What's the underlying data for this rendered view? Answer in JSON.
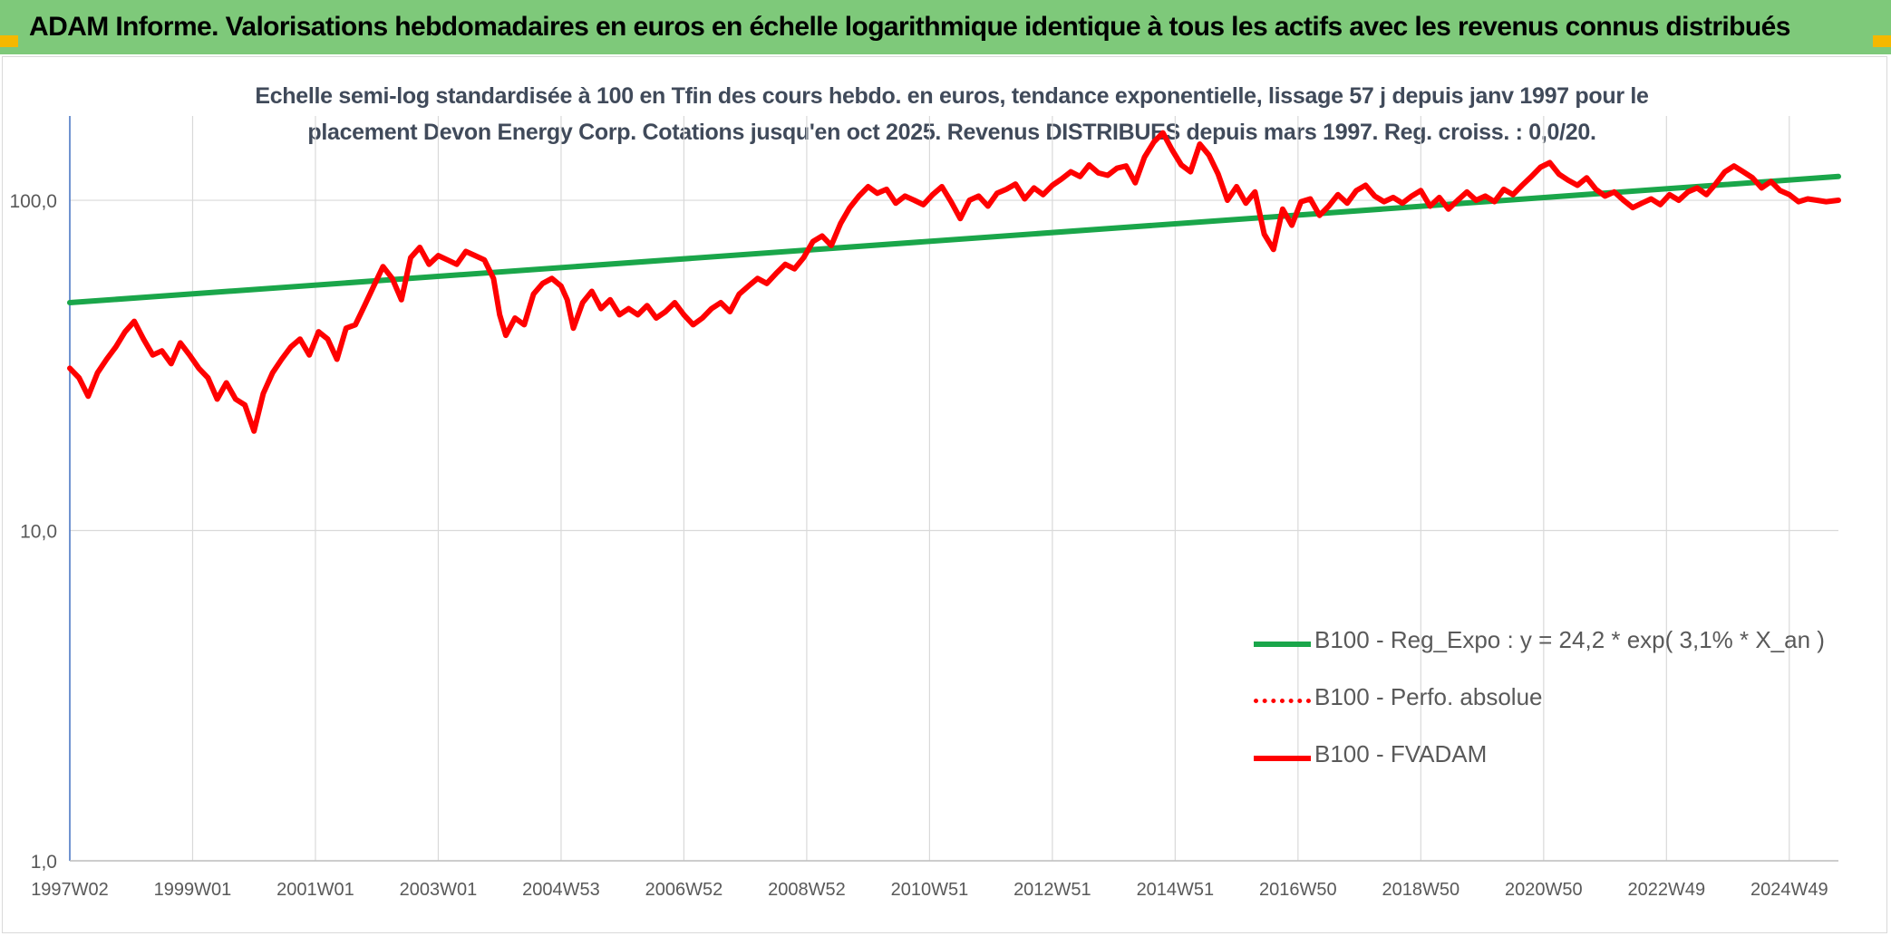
{
  "banner": {
    "title": "ADAM Informe. Valorisations hebdomadaires en euros en échelle logarithmique identique à tous les actifs avec les revenus connus distribués"
  },
  "colors": {
    "banner_bg": "#7ec97a",
    "corner_accent": "#f5b800",
    "trend_line": "#1aa64a",
    "fvadam_line": "#ff0000",
    "perfo_line": "#ff0000",
    "grid": "#d9d9d9",
    "axis": "#4472c4"
  },
  "chart_data": {
    "type": "line",
    "subtitle": "Echelle semi-log standardisée à 100 en Tfin des cours hebdo. en euros, tendance exponentielle, lissage 57 j depuis janv 1997 pour le placement Devon Energy Corp. Cotations jusqu'en oct 2025. Revenus DISTRIBUES depuis mars 1997. Reg. croiss. : 0,0/20.",
    "y_scale": "log",
    "ylim": [
      1,
      180
    ],
    "y_ticks": [
      {
        "value": 1,
        "label": "1,0"
      },
      {
        "value": 10,
        "label": "10,0"
      },
      {
        "value": 100,
        "label": "100,0"
      }
    ],
    "xlim": [
      1997.0,
      2025.8
    ],
    "x_ticks": [
      {
        "x": 1997.0,
        "label": "1997W02"
      },
      {
        "x": 1999.0,
        "label": "1999W01"
      },
      {
        "x": 2001.0,
        "label": "2001W01"
      },
      {
        "x": 2003.0,
        "label": "2003W01"
      },
      {
        "x": 2005.0,
        "label": "2004W53"
      },
      {
        "x": 2007.0,
        "label": "2006W52"
      },
      {
        "x": 2009.0,
        "label": "2008W52"
      },
      {
        "x": 2011.0,
        "label": "2010W51"
      },
      {
        "x": 2013.0,
        "label": "2012W51"
      },
      {
        "x": 2015.0,
        "label": "2014W51"
      },
      {
        "x": 2017.0,
        "label": "2016W50"
      },
      {
        "x": 2019.0,
        "label": "2018W50"
      },
      {
        "x": 2021.0,
        "label": "2020W50"
      },
      {
        "x": 2023.0,
        "label": "2022W49"
      },
      {
        "x": 2025.0,
        "label": "2024W49"
      }
    ],
    "legend": {
      "position": "bottom-right"
    },
    "series": [
      {
        "name": "B100 - Reg_Expo : y = 24,2 * exp( 3,1% *  X_an )",
        "color": "#1aa64a",
        "style": "solid",
        "points": [
          [
            1997.0,
            49
          ],
          [
            2025.8,
            118
          ]
        ]
      },
      {
        "name": "B100 - Perfo. absolue",
        "color": "#ff0000",
        "style": "dotted",
        "points": []
      },
      {
        "name": "B100 - FVADAM",
        "color": "#ff0000",
        "style": "solid",
        "points": [
          [
            1997.0,
            31
          ],
          [
            1997.15,
            29
          ],
          [
            1997.3,
            25.5
          ],
          [
            1997.45,
            30
          ],
          [
            1997.6,
            33
          ],
          [
            1997.75,
            36
          ],
          [
            1997.9,
            40
          ],
          [
            1998.05,
            43
          ],
          [
            1998.2,
            38
          ],
          [
            1998.35,
            34
          ],
          [
            1998.5,
            35
          ],
          [
            1998.65,
            32
          ],
          [
            1998.8,
            37
          ],
          [
            1998.95,
            34
          ],
          [
            1999.1,
            31
          ],
          [
            1999.25,
            29
          ],
          [
            1999.4,
            25
          ],
          [
            1999.55,
            28
          ],
          [
            1999.7,
            25
          ],
          [
            1999.85,
            24
          ],
          [
            2000.0,
            20
          ],
          [
            2000.15,
            26
          ],
          [
            2000.3,
            30
          ],
          [
            2000.45,
            33
          ],
          [
            2000.6,
            36
          ],
          [
            2000.75,
            38
          ],
          [
            2000.9,
            34
          ],
          [
            2001.05,
            40
          ],
          [
            2001.2,
            38
          ],
          [
            2001.35,
            33
          ],
          [
            2001.5,
            41
          ],
          [
            2001.65,
            42
          ],
          [
            2001.8,
            48
          ],
          [
            2001.95,
            55
          ],
          [
            2002.1,
            63
          ],
          [
            2002.25,
            58
          ],
          [
            2002.4,
            50
          ],
          [
            2002.55,
            67
          ],
          [
            2002.7,
            72
          ],
          [
            2002.85,
            64
          ],
          [
            2003.0,
            68
          ],
          [
            2003.15,
            66
          ],
          [
            2003.3,
            64
          ],
          [
            2003.45,
            70
          ],
          [
            2003.6,
            68
          ],
          [
            2003.75,
            66
          ],
          [
            2003.9,
            58
          ],
          [
            2004.0,
            45
          ],
          [
            2004.1,
            39
          ],
          [
            2004.25,
            44
          ],
          [
            2004.4,
            42
          ],
          [
            2004.55,
            52
          ],
          [
            2004.7,
            56
          ],
          [
            2004.85,
            58
          ],
          [
            2005.0,
            55
          ],
          [
            2005.1,
            50
          ],
          [
            2005.2,
            41
          ],
          [
            2005.35,
            49
          ],
          [
            2005.5,
            53
          ],
          [
            2005.65,
            47
          ],
          [
            2005.8,
            50
          ],
          [
            2005.95,
            45
          ],
          [
            2006.1,
            47
          ],
          [
            2006.25,
            45
          ],
          [
            2006.4,
            48
          ],
          [
            2006.55,
            44
          ],
          [
            2006.7,
            46
          ],
          [
            2006.85,
            49
          ],
          [
            2007.0,
            45
          ],
          [
            2007.15,
            42
          ],
          [
            2007.3,
            44
          ],
          [
            2007.45,
            47
          ],
          [
            2007.6,
            49
          ],
          [
            2007.75,
            46
          ],
          [
            2007.9,
            52
          ],
          [
            2008.05,
            55
          ],
          [
            2008.2,
            58
          ],
          [
            2008.35,
            56
          ],
          [
            2008.5,
            60
          ],
          [
            2008.65,
            64
          ],
          [
            2008.8,
            62
          ],
          [
            2008.95,
            67
          ],
          [
            2009.1,
            75
          ],
          [
            2009.25,
            78
          ],
          [
            2009.4,
            73
          ],
          [
            2009.55,
            85
          ],
          [
            2009.7,
            95
          ],
          [
            2009.85,
            103
          ],
          [
            2010.0,
            110
          ],
          [
            2010.15,
            105
          ],
          [
            2010.3,
            108
          ],
          [
            2010.45,
            98
          ],
          [
            2010.6,
            103
          ],
          [
            2010.75,
            100
          ],
          [
            2010.9,
            97
          ],
          [
            2011.05,
            104
          ],
          [
            2011.2,
            110
          ],
          [
            2011.35,
            99
          ],
          [
            2011.5,
            88
          ],
          [
            2011.65,
            100
          ],
          [
            2011.8,
            103
          ],
          [
            2011.95,
            96
          ],
          [
            2012.1,
            105
          ],
          [
            2012.25,
            108
          ],
          [
            2012.4,
            112
          ],
          [
            2012.55,
            101
          ],
          [
            2012.7,
            109
          ],
          [
            2012.85,
            104
          ],
          [
            2013.0,
            111
          ],
          [
            2013.15,
            116
          ],
          [
            2013.3,
            122
          ],
          [
            2013.45,
            118
          ],
          [
            2013.6,
            128
          ],
          [
            2013.75,
            121
          ],
          [
            2013.9,
            119
          ],
          [
            2014.05,
            125
          ],
          [
            2014.2,
            127
          ],
          [
            2014.35,
            113
          ],
          [
            2014.5,
            135
          ],
          [
            2014.65,
            150
          ],
          [
            2014.8,
            160
          ],
          [
            2014.95,
            142
          ],
          [
            2015.1,
            128
          ],
          [
            2015.25,
            122
          ],
          [
            2015.4,
            148
          ],
          [
            2015.55,
            137
          ],
          [
            2015.7,
            120
          ],
          [
            2015.85,
            100
          ],
          [
            2016.0,
            110
          ],
          [
            2016.15,
            98
          ],
          [
            2016.3,
            106
          ],
          [
            2016.45,
            79
          ],
          [
            2016.6,
            71
          ],
          [
            2016.75,
            94
          ],
          [
            2016.9,
            84
          ],
          [
            2017.05,
            99
          ],
          [
            2017.2,
            101
          ],
          [
            2017.35,
            90
          ],
          [
            2017.5,
            96
          ],
          [
            2017.65,
            104
          ],
          [
            2017.8,
            98
          ],
          [
            2017.95,
            107
          ],
          [
            2018.1,
            111
          ],
          [
            2018.25,
            103
          ],
          [
            2018.4,
            99
          ],
          [
            2018.55,
            102
          ],
          [
            2018.7,
            98
          ],
          [
            2018.85,
            103
          ],
          [
            2019.0,
            107
          ],
          [
            2019.15,
            96
          ],
          [
            2019.3,
            102
          ],
          [
            2019.45,
            94
          ],
          [
            2019.6,
            100
          ],
          [
            2019.75,
            106
          ],
          [
            2019.9,
            100
          ],
          [
            2020.05,
            103
          ],
          [
            2020.2,
            99
          ],
          [
            2020.35,
            108
          ],
          [
            2020.5,
            104
          ],
          [
            2020.65,
            111
          ],
          [
            2020.8,
            118
          ],
          [
            2020.95,
            126
          ],
          [
            2021.1,
            130
          ],
          [
            2021.25,
            120
          ],
          [
            2021.4,
            115
          ],
          [
            2021.55,
            111
          ],
          [
            2021.7,
            117
          ],
          [
            2021.85,
            108
          ],
          [
            2022.0,
            103
          ],
          [
            2022.15,
            106
          ],
          [
            2022.3,
            100
          ],
          [
            2022.45,
            95
          ],
          [
            2022.6,
            98
          ],
          [
            2022.75,
            101
          ],
          [
            2022.9,
            97
          ],
          [
            2023.05,
            104
          ],
          [
            2023.2,
            100
          ],
          [
            2023.35,
            106
          ],
          [
            2023.5,
            109
          ],
          [
            2023.65,
            104
          ],
          [
            2023.8,
            112
          ],
          [
            2023.95,
            122
          ],
          [
            2024.1,
            127
          ],
          [
            2024.25,
            122
          ],
          [
            2024.4,
            117
          ],
          [
            2024.55,
            109
          ],
          [
            2024.7,
            114
          ],
          [
            2024.85,
            107
          ],
          [
            2025.0,
            104
          ],
          [
            2025.15,
            99
          ],
          [
            2025.3,
            101
          ],
          [
            2025.45,
            100
          ],
          [
            2025.6,
            99
          ],
          [
            2025.8,
            100
          ]
        ]
      }
    ]
  }
}
